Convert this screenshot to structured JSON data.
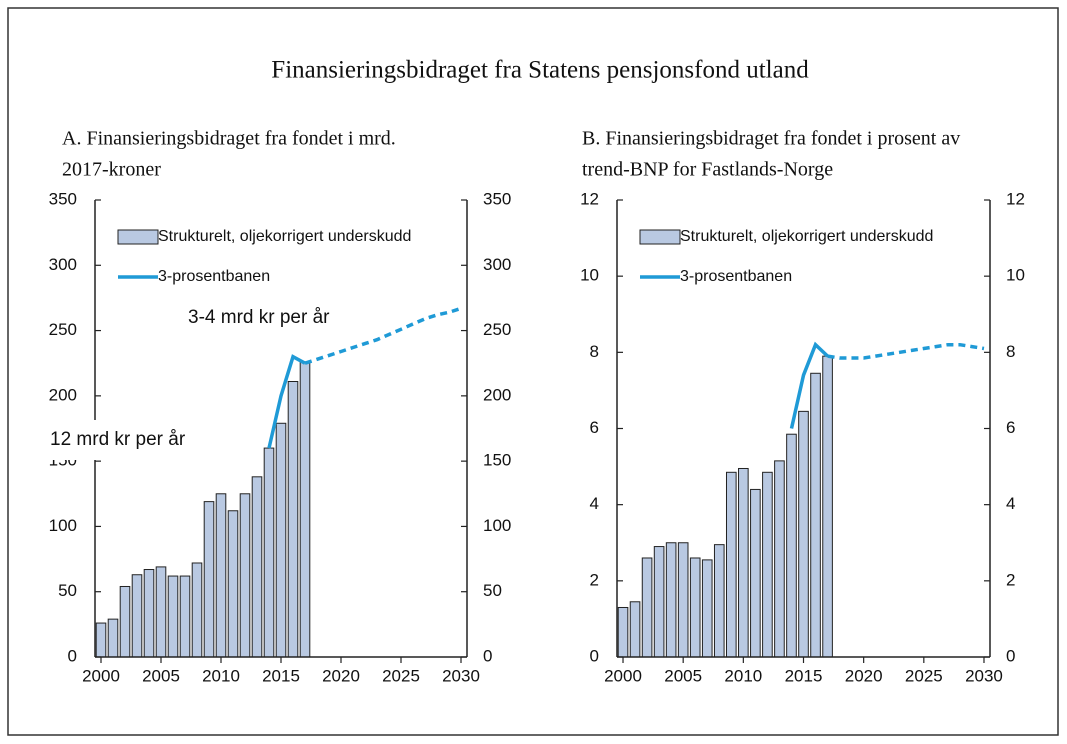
{
  "title": "Finansieringsbidraget fra Statens pensjonsfond utland",
  "chart_data": [
    {
      "type": "bar-line",
      "subtitle": [
        "A.  Finansieringsbidraget fra fondet i mrd.",
        "2017-kroner"
      ],
      "annotations": [
        "12 mrd kr per år",
        "3-4 mrd kr per år"
      ],
      "x": [
        2000,
        2001,
        2002,
        2003,
        2004,
        2005,
        2006,
        2007,
        2008,
        2009,
        2010,
        2011,
        2012,
        2013,
        2014,
        2015,
        2016,
        2017,
        2018,
        2019,
        2020,
        2021,
        2022,
        2023,
        2024,
        2025,
        2026,
        2027,
        2028,
        2029,
        2030
      ],
      "series": [
        {
          "name": "Strukturelt, oljekorrigert underskudd",
          "type": "bar",
          "color": "#b9c9e2",
          "values": [
            26,
            29,
            54,
            63,
            67,
            69,
            62,
            62,
            72,
            119,
            125,
            112,
            125,
            138,
            160,
            179,
            211,
            226,
            null,
            null,
            null,
            null,
            null,
            null,
            null,
            null,
            null,
            null,
            null,
            null,
            null
          ]
        },
        {
          "name": "3-prosentbanen",
          "type": "line",
          "color": "#1f9ad6",
          "dashed_from": 2017,
          "values": [
            null,
            null,
            null,
            null,
            null,
            null,
            null,
            null,
            null,
            null,
            null,
            null,
            null,
            null,
            160,
            200,
            230,
            225,
            228,
            231,
            234,
            237,
            240,
            243,
            247,
            251,
            255,
            259,
            262,
            264,
            267
          ]
        }
      ],
      "xlim": [
        1999.5,
        2030.5
      ],
      "xticks": [
        2000,
        2005,
        2010,
        2015,
        2020,
        2025,
        2030
      ],
      "ylim": [
        0,
        350
      ],
      "yticks": [
        0,
        50,
        100,
        150,
        200,
        250,
        300,
        350
      ],
      "y2lim": [
        0,
        350
      ],
      "y2ticks": [
        0,
        50,
        100,
        150,
        200,
        250,
        300,
        350
      ]
    },
    {
      "type": "bar-line",
      "subtitle": [
        "B.  Finansieringsbidraget fra fondet i prosent av",
        "trend-BNP for Fastlands-Norge"
      ],
      "x": [
        2000,
        2001,
        2002,
        2003,
        2004,
        2005,
        2006,
        2007,
        2008,
        2009,
        2010,
        2011,
        2012,
        2013,
        2014,
        2015,
        2016,
        2017,
        2018,
        2019,
        2020,
        2021,
        2022,
        2023,
        2024,
        2025,
        2026,
        2027,
        2028,
        2029,
        2030
      ],
      "series": [
        {
          "name": "Strukturelt, oljekorrigert underskudd",
          "type": "bar",
          "color": "#b9c9e2",
          "values": [
            1.3,
            1.45,
            2.6,
            2.9,
            3.0,
            3.0,
            2.6,
            2.55,
            2.95,
            4.85,
            4.95,
            4.4,
            4.85,
            5.15,
            5.85,
            6.45,
            7.45,
            7.9,
            null,
            null,
            null,
            null,
            null,
            null,
            null,
            null,
            null,
            null,
            null,
            null,
            null
          ]
        },
        {
          "name": "3-prosentbanen",
          "type": "line",
          "color": "#1f9ad6",
          "dashed_from": 2017,
          "values": [
            null,
            null,
            null,
            null,
            null,
            null,
            null,
            null,
            null,
            null,
            null,
            null,
            null,
            null,
            6.0,
            7.4,
            8.2,
            7.9,
            7.85,
            7.85,
            7.85,
            7.9,
            7.95,
            8.0,
            8.05,
            8.1,
            8.15,
            8.2,
            8.2,
            8.15,
            8.1
          ]
        }
      ],
      "xlim": [
        1999.5,
        2030.5
      ],
      "xticks": [
        2000,
        2005,
        2010,
        2015,
        2020,
        2025,
        2030
      ],
      "ylim": [
        0,
        12
      ],
      "yticks": [
        0,
        2,
        4,
        6,
        8,
        10,
        12
      ],
      "y2lim": [
        0,
        12
      ],
      "y2ticks": [
        0,
        2,
        4,
        6,
        8,
        10,
        12
      ]
    }
  ]
}
